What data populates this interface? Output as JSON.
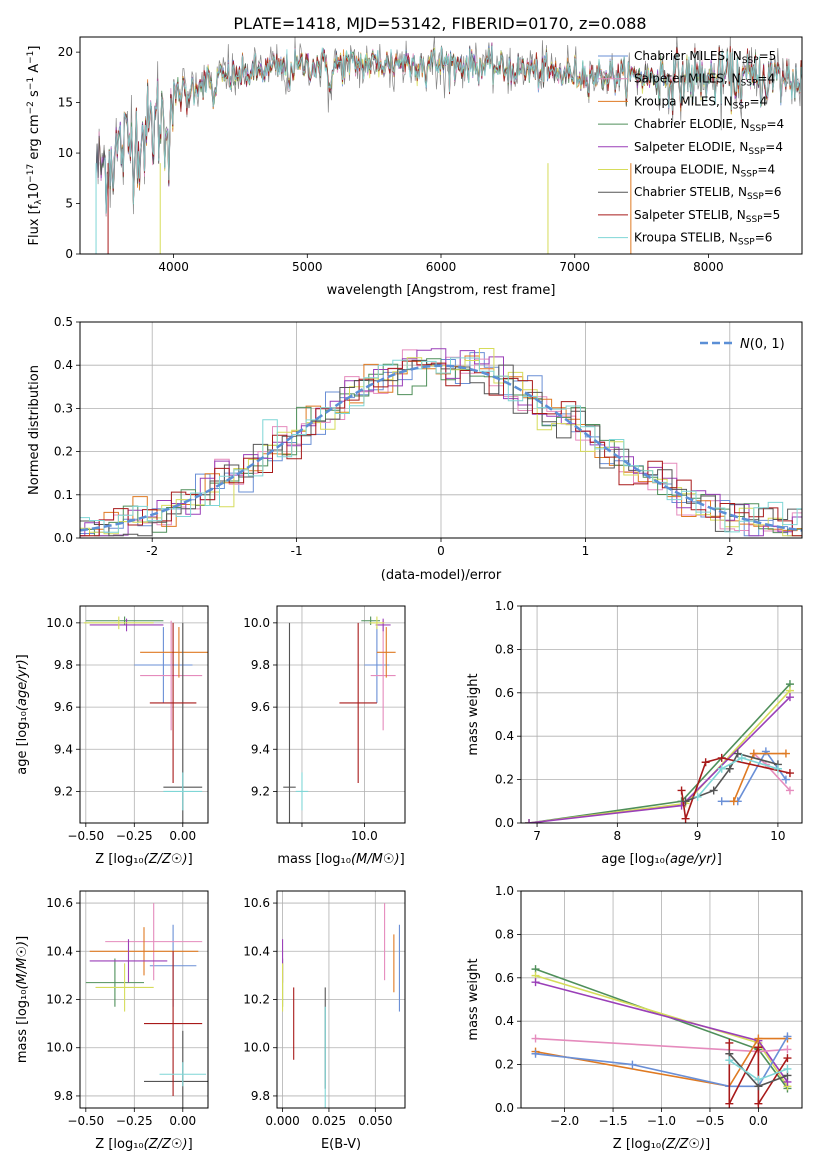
{
  "figure_title": "PLATE=1418, MJD=53142, FIBERID=0170, z=0.088",
  "series_colors": {
    "Chabrier MILES": "#6a8fd6",
    "Salpeter MILES": "#e58bbd",
    "Kroupa MILES": "#df7a22",
    "Chabrier ELODIE": "#4f8f5a",
    "Salpeter ELODIE": "#9a3fb8",
    "Kroupa ELODIE": "#d6dc5a",
    "Chabrier STELIB": "#555555",
    "Salpeter STELIB": "#a81a1a",
    "Kroupa STELIB": "#7fd6d6"
  },
  "chart_data": [
    {
      "id": "spectrum",
      "type": "line",
      "xlabel": "wavelength [Angstrom, rest frame]",
      "ylabel": "Flux [f_λ10^-17 erg cm^-2 s^-1 A^-1]",
      "xlim": [
        3300,
        8700
      ],
      "ylim": [
        0,
        21.5
      ],
      "xticks": [
        4000,
        5000,
        6000,
        7000,
        8000
      ],
      "yticks": [
        0,
        5,
        10,
        15,
        20
      ],
      "grid": false,
      "legend_position": "right",
      "legend": [
        {
          "label": "Chabrier MILES, N_SSP=5",
          "color": "#6a8fd6"
        },
        {
          "label": "Salpeter MILES, N_SSP=4",
          "color": "#e58bbd"
        },
        {
          "label": "Kroupa MILES, N_SSP=4",
          "color": "#df7a22"
        },
        {
          "label": "Chabrier ELODIE, N_SSP=4",
          "color": "#4f8f5a"
        },
        {
          "label": "Salpeter ELODIE, N_SSP=4",
          "color": "#9a3fb8"
        },
        {
          "label": "Kroupa ELODIE, N_SSP=4",
          "color": "#d6dc5a"
        },
        {
          "label": "Chabrier STELIB, N_SSP=6",
          "color": "#555555"
        },
        {
          "label": "Salpeter STELIB, N_SSP=5",
          "color": "#a81a1a"
        },
        {
          "label": "Kroupa STELIB, N_SSP=6",
          "color": "#7fd6d6"
        }
      ],
      "continuum_x": [
        3450,
        3600,
        3800,
        3900,
        4000,
        4200,
        4500,
        4800,
        5000,
        5300,
        5600,
        5900,
        6100,
        6400,
        6700,
        7000,
        7400,
        7800,
        8200,
        8700
      ],
      "continuum_y": [
        8.5,
        10.5,
        12.0,
        13.5,
        15.5,
        17.0,
        17.8,
        18.4,
        18.7,
        18.8,
        18.9,
        19.0,
        18.8,
        18.5,
        18.1,
        17.8,
        17.6,
        17.5,
        17.4,
        17.3
      ],
      "data_color": "#888888"
    },
    {
      "id": "residuals",
      "type": "histogram",
      "xlabel": "(data-model)/error",
      "ylabel": "Normed distribution",
      "xlim": [
        -2.5,
        2.5
      ],
      "ylim": [
        0,
        0.5
      ],
      "xticks": [
        -2,
        -1,
        0,
        1,
        2
      ],
      "yticks": [
        0.0,
        0.1,
        0.2,
        0.3,
        0.4,
        0.5
      ],
      "grid": true,
      "bin_width": 0.1,
      "legend": [
        {
          "label": "N(0,1)",
          "style": "dashed",
          "color": "#5b8fd6"
        }
      ],
      "legend_position": "top-right"
    },
    {
      "id": "age_vs_Z",
      "type": "errorbar",
      "xlabel": "Z [log10(Z/Z☉)]",
      "ylabel": "age  [log10(age/yr)]",
      "xlim": [
        -0.53,
        0.13
      ],
      "ylim": [
        9.05,
        10.08
      ],
      "xticks": [
        -0.5,
        -0.25,
        0.0
      ],
      "xtick_labels": [
        "−0.50",
        "−0.25",
        "0.00"
      ],
      "yticks": [
        9.2,
        9.4,
        9.6,
        9.8,
        10.0
      ],
      "grid": true,
      "points": [
        {
          "s": "Chabrier MILES",
          "x": -0.1,
          "xerr": 0.15,
          "y": 9.8,
          "yerr": 0.18
        },
        {
          "s": "Salpeter MILES",
          "x": -0.06,
          "xerr": 0.16,
          "y": 9.75,
          "yerr": 0.26
        },
        {
          "s": "Kroupa MILES",
          "x": -0.02,
          "xerr": 0.2,
          "y": 9.86,
          "yerr": 0.12
        },
        {
          "s": "Chabrier ELODIE",
          "x": -0.3,
          "xerr": 0.2,
          "y": 10.01,
          "yerr": 0.02
        },
        {
          "s": "Salpeter ELODIE",
          "x": -0.29,
          "xerr": 0.19,
          "y": 9.99,
          "yerr": 0.03
        },
        {
          "s": "Kroupa ELODIE",
          "x": -0.33,
          "xerr": 0.18,
          "y": 10.0,
          "yerr": 0.03
        },
        {
          "s": "Chabrier STELIB",
          "x": 0.0,
          "xerr": 0.1,
          "y": 9.22,
          "yerr": 0.78
        },
        {
          "s": "Salpeter STELIB",
          "x": -0.05,
          "xerr": 0.12,
          "y": 9.62,
          "yerr": 0.38
        },
        {
          "s": "Kroupa STELIB",
          "x": 0.0,
          "xerr": 0.1,
          "y": 9.2,
          "yerr": 0.09
        }
      ]
    },
    {
      "id": "age_vs_mass",
      "type": "errorbar",
      "xlabel": "mass [log10(M/M☉)]",
      "ylabel": "",
      "xlim": [
        8.6,
        10.65
      ],
      "ylim": [
        9.05,
        10.08
      ],
      "xticks": [
        9.0,
        10.0
      ],
      "xtick_labels": [
        "",
        "10.0"
      ],
      "yticks": [
        9.2,
        9.4,
        9.6,
        9.8,
        10.0
      ],
      "grid": true,
      "points": [
        {
          "s": "Chabrier MILES",
          "x": 10.2,
          "xerr": 0.2,
          "y": 9.8,
          "yerr": 0.18
        },
        {
          "s": "Salpeter MILES",
          "x": 10.3,
          "xerr": 0.2,
          "y": 9.75,
          "yerr": 0.26
        },
        {
          "s": "Kroupa MILES",
          "x": 10.35,
          "xerr": 0.15,
          "y": 9.86,
          "yerr": 0.12
        },
        {
          "s": "Chabrier ELODIE",
          "x": 10.1,
          "xerr": 0.15,
          "y": 10.01,
          "yerr": 0.02
        },
        {
          "s": "Salpeter ELODIE",
          "x": 10.3,
          "xerr": 0.12,
          "y": 9.99,
          "yerr": 0.03
        },
        {
          "s": "Kroupa ELODIE",
          "x": 10.2,
          "xerr": 0.12,
          "y": 10.0,
          "yerr": 0.03
        },
        {
          "s": "Chabrier STELIB",
          "x": 8.8,
          "xerr": 0.1,
          "y": 9.22,
          "yerr": 0.78
        },
        {
          "s": "Salpeter STELIB",
          "x": 9.9,
          "xerr": 0.3,
          "y": 9.62,
          "yerr": 0.38
        },
        {
          "s": "Kroupa STELIB",
          "x": 9.0,
          "xerr": 0.1,
          "y": 9.2,
          "yerr": 0.09
        }
      ]
    },
    {
      "id": "weight_vs_age",
      "type": "line",
      "xlabel": "age  [log10(age/yr)]",
      "ylabel": "mass weight",
      "xlim": [
        6.8,
        10.3
      ],
      "ylim": [
        0,
        1.0
      ],
      "xticks": [
        7,
        8,
        9,
        10
      ],
      "yticks": [
        0.0,
        0.2,
        0.4,
        0.6,
        0.8,
        1.0
      ],
      "grid": true,
      "series": [
        {
          "s": "Chabrier ELODIE",
          "x": [
            6.9,
            8.8,
            10.15
          ],
          "y": [
            0.0,
            0.1,
            0.64
          ]
        },
        {
          "s": "Kroupa ELODIE",
          "x": [
            6.9,
            8.85,
            10.15
          ],
          "y": [
            0.0,
            0.09,
            0.61
          ]
        },
        {
          "s": "Salpeter ELODIE",
          "x": [
            6.9,
            8.8,
            10.15
          ],
          "y": [
            0.0,
            0.08,
            0.58
          ]
        },
        {
          "s": "Chabrier MILES",
          "x": [
            9.3,
            9.5,
            9.85,
            10.1
          ],
          "y": [
            0.1,
            0.1,
            0.33,
            0.2
          ]
        },
        {
          "s": "Salpeter MILES",
          "x": [
            9.7,
            9.85,
            10.15
          ],
          "y": [
            0.32,
            0.27,
            0.15
          ]
        },
        {
          "s": "Kroupa MILES",
          "x": [
            9.45,
            9.7,
            10.1
          ],
          "y": [
            0.1,
            0.32,
            0.32
          ]
        },
        {
          "s": "Salpeter STELIB",
          "x": [
            8.8,
            8.85,
            9.1,
            9.3,
            10.15
          ],
          "y": [
            0.15,
            0.02,
            0.28,
            0.3,
            0.23
          ]
        },
        {
          "s": "Chabrier STELIB",
          "x": [
            8.85,
            9.2,
            9.4,
            9.5,
            10.0
          ],
          "y": [
            0.1,
            0.15,
            0.25,
            0.32,
            0.27
          ]
        },
        {
          "s": "Kroupa STELIB",
          "x": [
            9.0,
            9.3,
            9.55,
            10.0
          ],
          "y": [
            0.12,
            0.25,
            0.3,
            0.25
          ]
        }
      ]
    },
    {
      "id": "mass_vs_Z",
      "type": "errorbar",
      "xlabel": "Z [log10(Z/Z☉)]",
      "ylabel": "mass [log10(M/M☉)]",
      "xlim": [
        -0.53,
        0.13
      ],
      "ylim": [
        9.75,
        10.65
      ],
      "xticks": [
        -0.5,
        -0.25,
        0.0
      ],
      "xtick_labels": [
        "−0.50",
        "−0.25",
        "0.00"
      ],
      "yticks": [
        9.8,
        10.0,
        10.2,
        10.4,
        10.6
      ],
      "grid": true,
      "points": [
        {
          "s": "Chabrier MILES",
          "x": -0.05,
          "xerr": 0.12,
          "y": 10.34,
          "yerr": 0.17
        },
        {
          "s": "Salpeter MILES",
          "x": -0.15,
          "xerr": 0.25,
          "y": 10.44,
          "yerr": 0.16
        },
        {
          "s": "Kroupa MILES",
          "x": -0.2,
          "xerr": 0.28,
          "y": 10.4,
          "yerr": 0.1
        },
        {
          "s": "Chabrier ELODIE",
          "x": -0.35,
          "xerr": 0.15,
          "y": 10.27,
          "yerr": 0.1
        },
        {
          "s": "Salpeter ELODIE",
          "x": -0.28,
          "xerr": 0.2,
          "y": 10.36,
          "yerr": 0.09
        },
        {
          "s": "Kroupa ELODIE",
          "x": -0.3,
          "xerr": 0.15,
          "y": 10.25,
          "yerr": 0.1
        },
        {
          "s": "Chabrier STELIB",
          "x": 0.0,
          "xerr": 0.2,
          "y": 9.86,
          "yerr": 0.21
        },
        {
          "s": "Salpeter STELIB",
          "x": -0.05,
          "xerr": 0.15,
          "y": 10.1,
          "yerr": 0.3
        },
        {
          "s": "Kroupa STELIB",
          "x": 0.0,
          "xerr": 0.12,
          "y": 9.89,
          "yerr": 0.05
        }
      ]
    },
    {
      "id": "mass_vs_ebv",
      "type": "errorbar",
      "xlabel": "E(B-V)",
      "ylabel": "",
      "xlim": [
        -0.003,
        0.066
      ],
      "ylim": [
        9.75,
        10.65
      ],
      "xticks": [
        0.0,
        0.025,
        0.05
      ],
      "xtick_labels": [
        "0.000",
        "0.025",
        "0.050"
      ],
      "yticks": [
        9.8,
        10.0,
        10.2,
        10.4,
        10.6
      ],
      "grid": true,
      "points": [
        {
          "s": "Chabrier MILES",
          "x": 0.063,
          "xerr": 0,
          "y": 10.33,
          "yerr": 0.18
        },
        {
          "s": "Salpeter MILES",
          "x": 0.055,
          "xerr": 0,
          "y": 10.44,
          "yerr": 0.16
        },
        {
          "s": "Kroupa MILES",
          "x": 0.06,
          "xerr": 0,
          "y": 10.35,
          "yerr": 0.12
        },
        {
          "s": "Chabrier ELODIE",
          "x": 0.0,
          "xerr": 0,
          "y": 10.27,
          "yerr": 0.1
        },
        {
          "s": "Salpeter ELODIE",
          "x": 0.0,
          "xerr": 0,
          "y": 10.36,
          "yerr": 0.09
        },
        {
          "s": "Kroupa ELODIE",
          "x": 0.0,
          "xerr": 0,
          "y": 10.25,
          "yerr": 0.1
        },
        {
          "s": "Chabrier STELIB",
          "x": 0.023,
          "xerr": 0,
          "y": 10.04,
          "yerr": 0.21
        },
        {
          "s": "Salpeter STELIB",
          "x": 0.006,
          "xerr": 0,
          "y": 10.1,
          "yerr": 0.15
        },
        {
          "s": "Kroupa STELIB",
          "x": 0.023,
          "xerr": 0,
          "y": 9.9,
          "yerr": 0.27
        }
      ]
    },
    {
      "id": "weight_vs_Z",
      "type": "line",
      "xlabel": "Z [log10(Z/Z☉)]",
      "ylabel": "mass weight",
      "xlim": [
        -2.45,
        0.45
      ],
      "ylim": [
        0,
        1.0
      ],
      "xticks": [
        -2.0,
        -1.5,
        -1.0,
        -0.5,
        0.0
      ],
      "xtick_labels": [
        "−2.0",
        "−1.5",
        "−1.0",
        "−0.5",
        "0.0"
      ],
      "yticks": [
        0.0,
        0.2,
        0.4,
        0.6,
        0.8,
        1.0
      ],
      "grid": true,
      "series": [
        {
          "s": "Chabrier ELODIE",
          "x": [
            -2.3,
            0.0,
            0.3
          ],
          "y": [
            0.64,
            0.27,
            0.09
          ]
        },
        {
          "s": "Kroupa ELODIE",
          "x": [
            -2.3,
            0.0,
            0.3
          ],
          "y": [
            0.61,
            0.3,
            0.1
          ]
        },
        {
          "s": "Salpeter ELODIE",
          "x": [
            -2.3,
            0.0,
            0.3
          ],
          "y": [
            0.58,
            0.31,
            0.12
          ]
        },
        {
          "s": "Salpeter MILES",
          "x": [
            -2.3,
            0.0,
            0.3
          ],
          "y": [
            0.32,
            0.26,
            0.27
          ]
        },
        {
          "s": "Kroupa MILES",
          "x": [
            -2.3,
            -0.3,
            0.0,
            0.3
          ],
          "y": [
            0.26,
            0.1,
            0.32,
            0.32
          ]
        },
        {
          "s": "Chabrier MILES",
          "x": [
            -2.3,
            -1.3,
            -0.3,
            0.0,
            0.3
          ],
          "y": [
            0.25,
            0.2,
            0.1,
            0.1,
            0.33
          ]
        },
        {
          "s": "Salpeter STELIB",
          "x": [
            -0.3,
            -0.3,
            0.0,
            0.0,
            0.3
          ],
          "y": [
            0.3,
            0.02,
            0.28,
            0.02,
            0.23
          ]
        },
        {
          "s": "Chabrier STELIB",
          "x": [
            -0.3,
            0.0,
            0.3
          ],
          "y": [
            0.25,
            0.1,
            0.15
          ]
        },
        {
          "s": "Kroupa STELIB",
          "x": [
            -0.3,
            0.0,
            0.3
          ],
          "y": [
            0.22,
            0.13,
            0.18
          ]
        }
      ]
    }
  ]
}
